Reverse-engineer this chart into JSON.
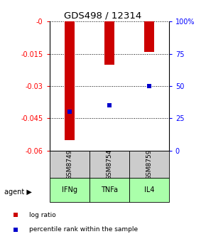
{
  "title": "GDS498 / 12314",
  "samples": [
    "GSM8749",
    "GSM8754",
    "GSM8759"
  ],
  "agents": [
    "IFNg",
    "TNFa",
    "IL4"
  ],
  "log_ratios": [
    -0.055,
    -0.02,
    -0.014
  ],
  "percentile_ranks": [
    30,
    35,
    50
  ],
  "ylim_left": [
    -0.06,
    0.0
  ],
  "ylim_right": [
    0,
    100
  ],
  "yticks_left": [
    0.0,
    -0.015,
    -0.03,
    -0.045,
    -0.06
  ],
  "yticks_right": [
    0,
    25,
    50,
    75,
    100
  ],
  "ytick_labels_left": [
    "-0",
    "-0.015",
    "-0.03",
    "-0.045",
    "-0.06"
  ],
  "ytick_labels_right": [
    "0",
    "25",
    "50",
    "75",
    "100%"
  ],
  "bar_color": "#cc0000",
  "percentile_color": "#0000cc",
  "sample_bg": "#cccccc",
  "agent_bg_color": "#aaffaa",
  "legend_log_ratio": "log ratio",
  "legend_percentile": "percentile rank within the sample",
  "bar_width": 0.25
}
